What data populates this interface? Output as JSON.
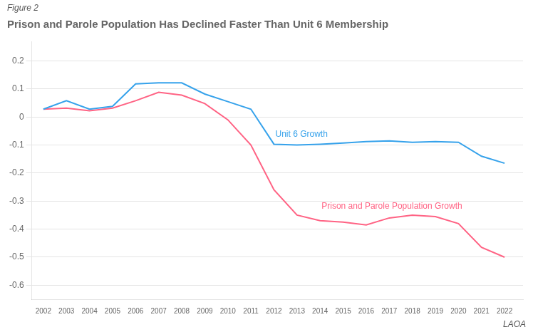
{
  "chart_data": {
    "type": "line",
    "title": "Prison and Parole Population Has Declined Faster Than Unit 6 Membership",
    "annotations": [
      "Figure 2",
      "LAOΑ"
    ],
    "x": [
      2002,
      2003,
      2004,
      2005,
      2006,
      2007,
      2008,
      2009,
      2010,
      2011,
      2012,
      2013,
      2014,
      2015,
      2016,
      2017,
      2018,
      2019,
      2020,
      2021,
      2022
    ],
    "xlim": [
      2001.5,
      2022.8
    ],
    "xticks": [
      2002,
      2003,
      2004,
      2005,
      2006,
      2007,
      2008,
      2009,
      2010,
      2011,
      2012,
      2013,
      2014,
      2015,
      2016,
      2017,
      2018,
      2019,
      2020,
      2021,
      2022
    ],
    "ylim": [
      -0.65,
      0.27
    ],
    "yticks": [
      -0.6,
      -0.5,
      -0.4,
      -0.3,
      -0.2,
      -0.1,
      0,
      0.1,
      0.2
    ],
    "grid": true,
    "series": [
      {
        "name": "Unit 6 Growth",
        "values": [
          0.028,
          0.058,
          0.028,
          0.038,
          0.118,
          0.122,
          0.122,
          0.082,
          0.055,
          0.028,
          -0.097,
          -0.1,
          -0.097,
          -0.093,
          -0.088,
          -0.085,
          -0.09,
          -0.088,
          -0.09,
          -0.14,
          -0.165
        ]
      },
      {
        "name": "Prison and Parole Population Growth",
        "values": [
          0.028,
          0.032,
          0.022,
          0.032,
          0.058,
          0.088,
          0.078,
          0.048,
          -0.01,
          -0.1,
          -0.26,
          -0.35,
          -0.37,
          -0.375,
          -0.385,
          -0.36,
          -0.35,
          -0.355,
          -0.38,
          -0.465,
          -0.5
        ]
      }
    ]
  }
}
